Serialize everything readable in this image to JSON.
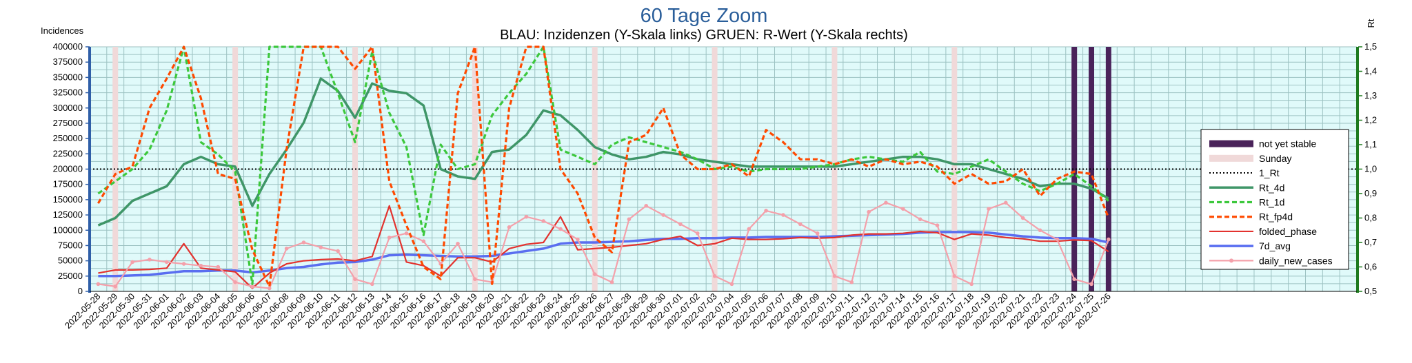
{
  "chart_data": {
    "type": "line",
    "title": "60 Tage Zoom",
    "subtitle": "BLAU: Inzidenzen (Y-Skala links)     GRUEN: R-Wert (Y-Skala rechts)",
    "ylabel_left": "Incidences",
    "ylabel_right": "Rt",
    "ylim_left": [
      0,
      400000
    ],
    "ylim_right": [
      0.5,
      1.5
    ],
    "left_ticks": [
      "0",
      "25000",
      "50000",
      "75000",
      "100000",
      "125000",
      "150000",
      "175000",
      "200000",
      "225000",
      "250000",
      "275000",
      "300000",
      "325000",
      "350000",
      "375000",
      "400000"
    ],
    "right_ticks": [
      "0,5",
      "0,6",
      "0,7",
      "0,8",
      "0,9",
      "1,0",
      "1,1",
      "1,2",
      "1,3",
      "1,4",
      "1,5"
    ],
    "grid": true,
    "legend_position": "right",
    "categories": [
      "2022-05-28",
      "2022-05-29",
      "2022-05-30",
      "2022-05-31",
      "2022-06-01",
      "2022-06-02",
      "2022-06-03",
      "2022-06-04",
      "2022-06-05",
      "2022-06-06",
      "2022-06-07",
      "2022-06-08",
      "2022-06-09",
      "2022-06-10",
      "2022-06-11",
      "2022-06-12",
      "2022-06-13",
      "2022-06-14",
      "2022-06-15",
      "2022-06-16",
      "2022-06-17",
      "2022-06-18",
      "2022-06-19",
      "2022-06-20",
      "2022-06-21",
      "2022-06-22",
      "2022-06-23",
      "2022-06-24",
      "2022-06-25",
      "2022-06-26",
      "2022-06-27",
      "2022-06-28",
      "2022-06-29",
      "2022-06-30",
      "2022-07-01",
      "2022-07-02",
      "2022-07-03",
      "2022-07-04",
      "2022-07-05",
      "2022-07-06",
      "2022-07-07",
      "2022-07-08",
      "2022-07-09",
      "2022-07-10",
      "2022-07-11",
      "2022-07-12",
      "2022-07-13",
      "2022-07-14",
      "2022-07-15",
      "2022-07-16",
      "2022-07-17",
      "2022-07-18",
      "2022-07-19",
      "2022-07-20",
      "2022-07-21",
      "2022-07-22",
      "2022-07-23",
      "2022-07-24",
      "2022-07-25",
      "2022-07-26"
    ],
    "sundays": [
      "2022-05-29",
      "2022-06-05",
      "2022-06-12",
      "2022-06-19",
      "2022-06-26",
      "2022-07-03",
      "2022-07-10",
      "2022-07-17",
      "2022-07-24"
    ],
    "not_yet_stable": [
      "2022-07-24",
      "2022-07-25",
      "2022-07-26"
    ],
    "reference_line": {
      "name": "1_Rt",
      "value": 1.0
    },
    "series": [
      {
        "name": "not yet stable",
        "color": "#4a235a",
        "style": "bar"
      },
      {
        "name": "Sunday",
        "color": "#f0d9d9",
        "style": "bar"
      },
      {
        "name": "1_Rt",
        "color": "#000000",
        "style": "dotted"
      },
      {
        "name": "Rt_4d",
        "axis": "right",
        "color": "#3f9668",
        "style": "solid",
        "values": [
          0.77,
          0.8,
          0.87,
          0.9,
          0.93,
          1.02,
          1.05,
          1.02,
          1.01,
          0.85,
          0.98,
          1.08,
          1.19,
          1.37,
          1.32,
          1.21,
          1.35,
          1.32,
          1.31,
          1.26,
          1.0,
          0.97,
          0.96,
          1.07,
          1.08,
          1.14,
          1.24,
          1.22,
          1.16,
          1.09,
          1.06,
          1.04,
          1.05,
          1.07,
          1.06,
          1.04,
          1.03,
          1.02,
          1.01,
          1.01,
          1.01,
          1.01,
          1.01,
          1.01,
          1.02,
          1.03,
          1.04,
          1.05,
          1.05,
          1.04,
          1.02,
          1.02,
          1.0,
          0.98,
          0.96,
          0.93,
          0.94,
          0.94,
          0.92,
          0.88
        ]
      },
      {
        "name": "Rt_1d",
        "axis": "right",
        "color": "#3cc83c",
        "style": "dashed",
        "values": [
          0.9,
          0.95,
          1.0,
          1.08,
          1.24,
          1.5,
          1.11,
          1.06,
          0.99,
          0.53,
          1.5,
          1.5,
          1.5,
          1.5,
          1.31,
          1.11,
          1.48,
          1.23,
          1.09,
          0.73,
          1.1,
          1.0,
          1.02,
          1.22,
          1.31,
          1.39,
          1.5,
          1.08,
          1.05,
          1.02,
          1.1,
          1.13,
          1.11,
          1.09,
          1.07,
          1.04,
          1.0,
          1.01,
          0.99,
          1.0,
          1.0,
          1.0,
          1.01,
          1.02,
          1.04,
          1.05,
          1.04,
          1.03,
          1.07,
          0.99,
          0.98,
          1.01,
          1.04,
          0.99,
          0.94,
          0.91,
          0.94,
          0.98,
          0.93,
          0.87
        ]
      },
      {
        "name": "Rt_fp4d",
        "axis": "right",
        "color": "#ff4a00",
        "style": "dashed",
        "values": [
          0.86,
          0.98,
          1.01,
          1.25,
          1.37,
          1.5,
          1.29,
          0.98,
          0.96,
          0.67,
          0.52,
          1.08,
          1.5,
          1.5,
          1.5,
          1.41,
          1.5,
          0.95,
          0.77,
          0.6,
          0.55,
          1.31,
          1.5,
          0.53,
          1.25,
          1.5,
          1.5,
          1.0,
          0.9,
          0.72,
          0.66,
          1.11,
          1.14,
          1.25,
          1.06,
          1.0,
          1.0,
          1.02,
          0.97,
          1.16,
          1.11,
          1.04,
          1.04,
          1.02,
          1.04,
          1.01,
          1.04,
          1.02,
          1.03,
          1.01,
          0.94,
          0.98,
          0.94,
          0.95,
          1.0,
          0.89,
          0.96,
          0.99,
          0.98,
          0.8
        ]
      },
      {
        "name": "folded_phase",
        "axis": "left",
        "color": "#e3322e",
        "style": "solid",
        "values": [
          30000,
          35000,
          35000,
          36000,
          38000,
          78000,
          38000,
          35000,
          32000,
          5000,
          30000,
          45000,
          50000,
          52000,
          53000,
          50000,
          57000,
          140000,
          48000,
          42000,
          25000,
          55000,
          55000,
          48000,
          70000,
          77000,
          80000,
          122000,
          68000,
          70000,
          72000,
          75000,
          78000,
          85000,
          90000,
          75000,
          78000,
          87000,
          85000,
          85000,
          86000,
          88000,
          87000,
          88000,
          92000,
          94000,
          94000,
          95000,
          98000,
          96000,
          85000,
          94000,
          92000,
          88000,
          86000,
          82000,
          82000,
          84000,
          83000,
          65000
        ]
      },
      {
        "name": "7d_avg",
        "axis": "left",
        "color": "#5a6ef0",
        "style": "solid",
        "values": [
          25000,
          25000,
          26000,
          27000,
          30000,
          33000,
          33000,
          34000,
          34000,
          31000,
          34000,
          38000,
          40000,
          44000,
          47000,
          48000,
          52000,
          59000,
          60000,
          59000,
          58000,
          57000,
          57000,
          58000,
          62000,
          66000,
          70000,
          78000,
          80000,
          80000,
          81000,
          82000,
          84000,
          86000,
          86000,
          87000,
          87000,
          88000,
          88000,
          89000,
          89000,
          89000,
          89000,
          90000,
          91000,
          92000,
          93000,
          94000,
          96000,
          97000,
          97000,
          97000,
          96000,
          93000,
          90000,
          88000,
          87000,
          87000,
          86000,
          80000
        ]
      },
      {
        "name": "daily_new_cases",
        "axis": "left",
        "color": "#f4a0aa",
        "style": "marker",
        "values": [
          12000,
          8000,
          48000,
          52000,
          48000,
          45000,
          42000,
          40000,
          15000,
          8000,
          5000,
          70000,
          80000,
          72000,
          66000,
          20000,
          12000,
          88000,
          95000,
          82000,
          45000,
          78000,
          20000,
          15000,
          105000,
          122000,
          115000,
          102000,
          85000,
          28000,
          15000,
          118000,
          140000,
          125000,
          110000,
          95000,
          25000,
          12000,
          102000,
          132000,
          125000,
          110000,
          95000,
          25000,
          15000,
          130000,
          145000,
          135000,
          118000,
          108000,
          25000,
          12000,
          135000,
          145000,
          120000,
          100000,
          85000,
          20000,
          12000,
          85000
        ]
      }
    ]
  }
}
